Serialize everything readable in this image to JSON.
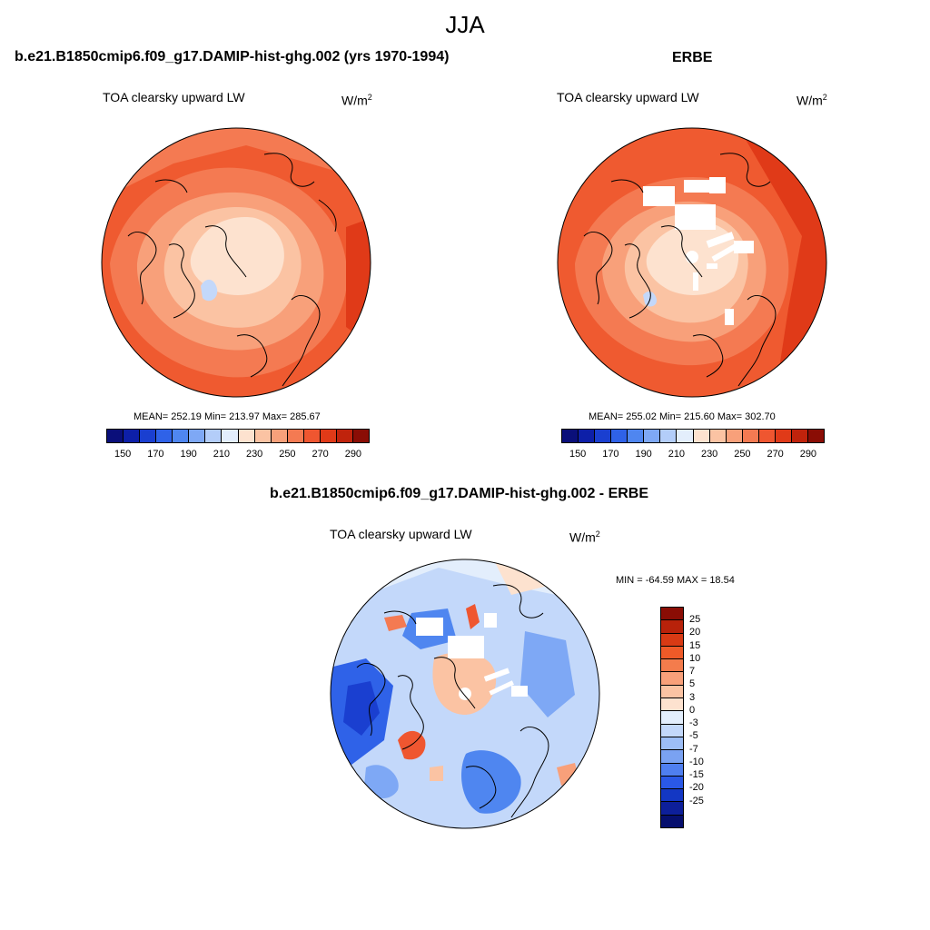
{
  "main_title": "JJA",
  "panels": [
    {
      "title": "b.e21.B1850cmip6.f09_g17.DAMIP-hist-ghg.002 (yrs 1970-1994)",
      "variable": "TOA clearsky upward LW",
      "units_base": "W/m",
      "units_exp": "2",
      "stats": "MEAN= 252.19  Min= 213.97  Max= 285.67"
    },
    {
      "title": "ERBE",
      "variable": "TOA clearsky upward LW",
      "units_base": "W/m",
      "units_exp": "2",
      "stats": "MEAN= 255.02  Min= 215.60  Max= 302.70"
    },
    {
      "title": "b.e21.B1850cmip6.f09_g17.DAMIP-hist-ghg.002 - ERBE",
      "variable": "TOA clearsky upward LW",
      "units_base": "W/m",
      "units_exp": "2",
      "stats": "MIN = -64.59 MAX =  18.54"
    }
  ],
  "abs_colorbar": {
    "colors": [
      "#0a0f7a",
      "#0d1fa8",
      "#1a3fd0",
      "#2f62e8",
      "#4f86f0",
      "#7ea8f5",
      "#b3cdf9",
      "#e3eefc",
      "#fde2cf",
      "#fbc3a3",
      "#f8a07a",
      "#f47a52",
      "#ef5630",
      "#e03a18",
      "#c0230c",
      "#8a0d05"
    ],
    "ticks": [
      "150",
      "170",
      "190",
      "210",
      "230",
      "250",
      "270",
      "290"
    ]
  },
  "diff_colorbar": {
    "colors": [
      "#8a0d05",
      "#b8220a",
      "#d83a14",
      "#ef5a28",
      "#f47c4c",
      "#f8a07a",
      "#fbc3a3",
      "#fde2cf",
      "#e3eefc",
      "#c3d8fa",
      "#9dbef6",
      "#7aa2f2",
      "#4f7ff0",
      "#2a58e6",
      "#1337c4",
      "#0d1f9a",
      "#060f6e"
    ],
    "ticks": [
      "25",
      "20",
      "15",
      "10",
      "7",
      "5",
      "3",
      "0",
      "-3",
      "-5",
      "-7",
      "-10",
      "-15",
      "-20",
      "-25"
    ]
  }
}
